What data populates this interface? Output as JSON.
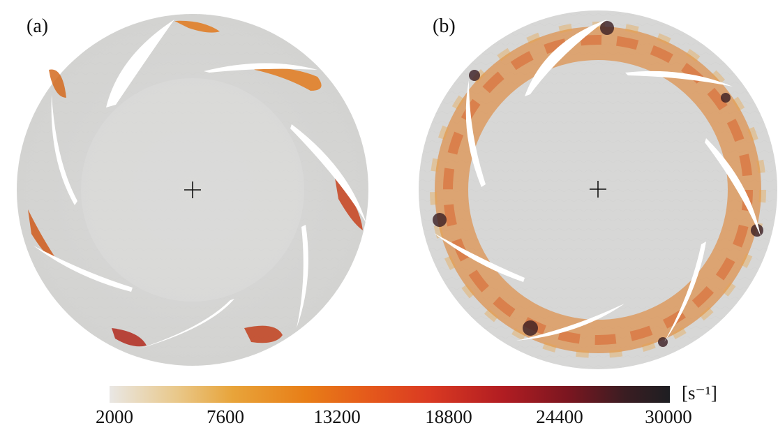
{
  "panels": [
    {
      "label": "(a)"
    },
    {
      "label": "(b)"
    }
  ],
  "colorbar": {
    "unit": "[s⁻¹]",
    "ticks": [
      "2000",
      "7600",
      "13200",
      "18800",
      "24400",
      "30000"
    ],
    "min": 2000,
    "max": 30000
  },
  "colors": {
    "background": "#d8d8d6",
    "low": "#e9e7e4",
    "mid": "#e87e17",
    "high": "#1e1e22"
  }
}
